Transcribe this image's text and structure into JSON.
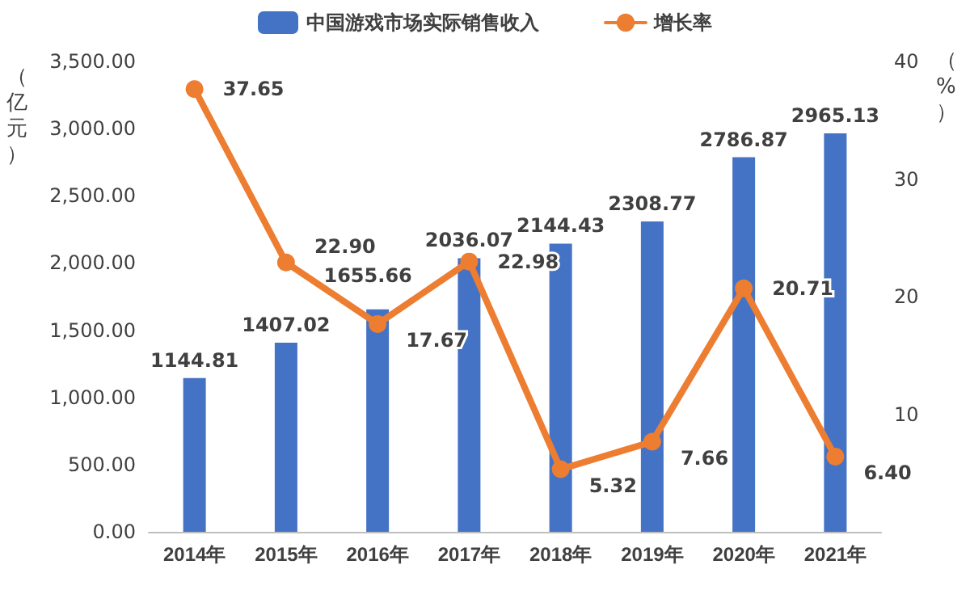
{
  "chart_data": {
    "type": "bar",
    "categories": [
      "2014年",
      "2015年",
      "2016年",
      "2017年",
      "2018年",
      "2019年",
      "2020年",
      "2021年"
    ],
    "series": [
      {
        "name": "中国游戏市场实际销售收入",
        "type": "bar",
        "color": "#4472c4",
        "values": [
          1144.81,
          1407.02,
          1655.66,
          2036.07,
          2144.43,
          2308.77,
          2786.87,
          2965.13
        ],
        "value_labels": [
          "1144.81",
          "1407.02",
          "1655.66",
          "2036.07",
          "2144.43",
          "2308.77",
          "2786.87",
          "2965.13"
        ]
      },
      {
        "name": "增长率",
        "type": "line",
        "axis": "y2",
        "color": "#ed7d31",
        "values": [
          37.65,
          22.9,
          17.67,
          22.98,
          5.32,
          7.66,
          20.71,
          6.4
        ],
        "value_labels": [
          "37.65",
          "22.90",
          "17.67",
          "22.98",
          "5.32",
          "7.66",
          "20.71",
          "6.40"
        ]
      }
    ],
    "ylabel": "（亿元）",
    "y2label": "（%）",
    "ylim": [
      0,
      3500
    ],
    "yticks": [
      {
        "value": 0,
        "label": "0.00"
      },
      {
        "value": 500,
        "label": "500.00"
      },
      {
        "value": 1000,
        "label": "1,000.00"
      },
      {
        "value": 1500,
        "label": "1,500.00"
      },
      {
        "value": 2000,
        "label": "2,000.00"
      },
      {
        "value": 2500,
        "label": "2,500.00"
      },
      {
        "value": 3000,
        "label": "3,000.00"
      },
      {
        "value": 3500,
        "label": "3,500.00"
      }
    ],
    "y2lim": [
      0,
      40
    ],
    "y2ticks": [
      10,
      20,
      30,
      40
    ],
    "grid": false,
    "legend": "top",
    "marker": "circle",
    "line_style": "solid"
  }
}
